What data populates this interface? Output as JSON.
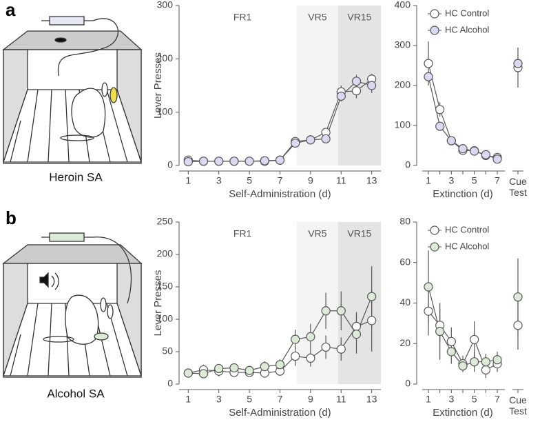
{
  "panels": [
    {
      "label": "a",
      "caption": "Heroin SA"
    },
    {
      "label": "b",
      "caption": "Alcohol SA"
    }
  ],
  "chart_data": [
    {
      "type": "line",
      "ylabel": "Lever Presses",
      "xlabel": "Self-Administration (d)",
      "x": [
        1,
        2,
        3,
        4,
        5,
        6,
        7,
        8,
        9,
        10,
        11,
        12,
        13
      ],
      "xlim": [
        0.4,
        13.6
      ],
      "xticks": [
        1,
        3,
        5,
        7,
        9,
        11,
        13
      ],
      "ylim": [
        0,
        300
      ],
      "yticks": [
        0,
        100,
        200,
        300
      ],
      "regions": [
        {
          "label": "FR1",
          "range": [
            1,
            8.1
          ]
        },
        {
          "label": "VR5",
          "range": [
            8.1,
            10.8
          ],
          "color": "#f4f4f4"
        },
        {
          "label": "VR15",
          "range": [
            10.8,
            13.6
          ],
          "color": "#e4e4e4"
        }
      ],
      "series": [
        {
          "color": "#ffffff",
          "values": [
            10,
            8,
            8,
            8,
            8,
            8,
            10,
            45,
            48,
            62,
            138,
            140,
            162
          ],
          "errors": [
            3,
            2,
            2,
            2,
            2,
            2,
            2,
            6,
            4,
            8,
            12,
            14,
            10
          ]
        },
        {
          "color": "#d9d9f2",
          "values": [
            7,
            8,
            8,
            8,
            8,
            9,
            10,
            42,
            48,
            50,
            130,
            158,
            150
          ],
          "errors": [
            2,
            2,
            2,
            2,
            2,
            2,
            2,
            5,
            4,
            4,
            10,
            12,
            14
          ]
        }
      ]
    },
    {
      "type": "extinction",
      "xlabel": "Extinction (d)",
      "categories": [
        "1",
        null,
        "3",
        null,
        "5",
        null,
        "7",
        "Cue Test"
      ],
      "ylim": [
        0,
        400
      ],
      "yticks": [
        0,
        100,
        200,
        300,
        400
      ],
      "legend": "upper right",
      "series": [
        {
          "name": "HC Control",
          "color": "#ffffff",
          "values": [
            255,
            140,
            62,
            38,
            37,
            25,
            20,
            245
          ],
          "errors": [
            55,
            18,
            6,
            5,
            4,
            5,
            5,
            50
          ]
        },
        {
          "name": "HC Alcohol",
          "color": "#d9d9f2",
          "values": [
            222,
            98,
            62,
            42,
            36,
            27,
            16,
            255
          ],
          "errors": [
            10,
            10,
            6,
            5,
            4,
            4,
            4,
            10
          ]
        }
      ]
    },
    {
      "type": "line",
      "ylabel": "Lever Presses",
      "xlabel": "Self-Administration (d)",
      "x": [
        1,
        2,
        3,
        4,
        5,
        6,
        7,
        8,
        9,
        10,
        11,
        12,
        13
      ],
      "xlim": [
        0.4,
        13.6
      ],
      "xticks": [
        1,
        3,
        5,
        7,
        9,
        11,
        13
      ],
      "ylim": [
        0,
        250
      ],
      "yticks": [
        0,
        50,
        100,
        150,
        200,
        250
      ],
      "regions": [
        {
          "label": "FR1",
          "range": [
            1,
            8.1
          ]
        },
        {
          "label": "VR5",
          "range": [
            8.1,
            10.8
          ],
          "color": "#f4f4f4"
        },
        {
          "label": "VR15",
          "range": [
            10.8,
            13.6
          ],
          "color": "#e4e4e4"
        }
      ],
      "series": [
        {
          "color": "#ffffff",
          "values": [
            17,
            22,
            20,
            18,
            18,
            17,
            20,
            43,
            40,
            57,
            54,
            89,
            98
          ],
          "errors": [
            5,
            8,
            8,
            5,
            5,
            5,
            6,
            15,
            13,
            18,
            18,
            22,
            48
          ]
        },
        {
          "color": "#dcebd6",
          "values": [
            17,
            16,
            24,
            25,
            21,
            27,
            30,
            69,
            73,
            113,
            113,
            77,
            135
          ],
          "errors": [
            5,
            5,
            7,
            6,
            5,
            8,
            8,
            15,
            20,
            28,
            30,
            30,
            47
          ]
        }
      ]
    },
    {
      "type": "extinction",
      "xlabel": "Extinction (d)",
      "categories": [
        "1",
        null,
        "3",
        null,
        "5",
        null,
        "7",
        "Cue Test"
      ],
      "ylim": [
        0,
        80
      ],
      "yticks": [
        0,
        20,
        40,
        60,
        80
      ],
      "legend": "upper right",
      "series": [
        {
          "name": "HC Control",
          "color": "#ffffff",
          "values": [
            36,
            29,
            21,
            10,
            22,
            7,
            10,
            29
          ],
          "errors": [
            12,
            8,
            7,
            4,
            9,
            4,
            4,
            12
          ]
        },
        {
          "name": "HC Alcohol",
          "color": "#dcebd6",
          "values": [
            48,
            26,
            16,
            9,
            11,
            11,
            12,
            43
          ],
          "errors": [
            18,
            14,
            6,
            3,
            5,
            4,
            4,
            19
          ]
        }
      ]
    }
  ]
}
